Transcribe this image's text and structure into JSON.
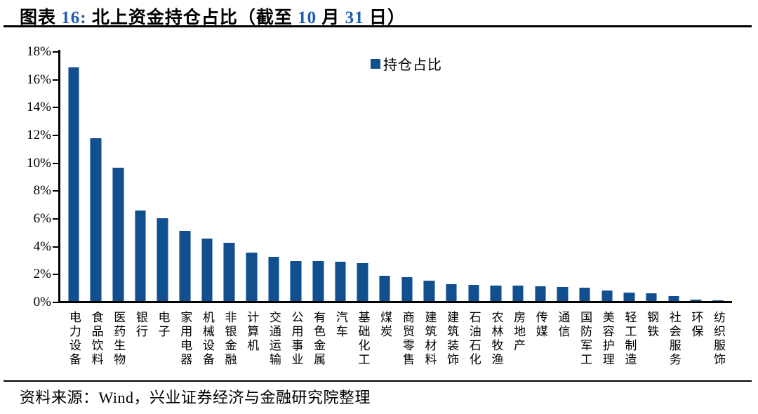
{
  "header": {
    "title_full": "图表 16: 北上资金持仓占比（截至 10 月 31 日）",
    "title_parts": [
      {
        "text": "图表 ",
        "color": "#000000"
      },
      {
        "text": "16:",
        "color": "#1f5ab0"
      },
      {
        "text": "  北上资金持仓占比（截至 ",
        "color": "#000000"
      },
      {
        "text": "10",
        "color": "#1f5ab0"
      },
      {
        "text": " 月 ",
        "color": "#000000"
      },
      {
        "text": "31",
        "color": "#1f5ab0"
      },
      {
        "text": " 日）",
        "color": "#000000"
      }
    ]
  },
  "footer": {
    "source": "资料来源：Wind，兴业证券经济与金融研究院整理"
  },
  "colors": {
    "bar": "#124f8f",
    "bar_edge": "#7da0c8",
    "axis": "#000000",
    "title_number_blue": "#1f5ab0"
  },
  "chart_data": {
    "type": "bar",
    "title": "北上资金持仓占比（截至 10 月 31 日）",
    "legend_entries": [
      "持仓占比"
    ],
    "legend_position": "top-center",
    "grid": false,
    "bar_color": "#124f8f",
    "ylim": [
      0,
      18
    ],
    "ytick_step": 2,
    "ytick_labels": [
      "0%",
      "2%",
      "4%",
      "6%",
      "8%",
      "10%",
      "12%",
      "14%",
      "16%",
      "18%"
    ],
    "ylabel": "",
    "xlabel": "",
    "categories": [
      "电力设备",
      "食品饮料",
      "医药生物",
      "银行",
      "电子",
      "家用电器",
      "机械设备",
      "非银金融",
      "计算机",
      "交通运输",
      "公用事业",
      "有色金属",
      "汽车",
      "基础化工",
      "煤炭",
      "商贸零售",
      "建筑材料",
      "建筑装饰",
      "石油石化",
      "农林牧渔",
      "房地产",
      "传媒",
      "通信",
      "国防军工",
      "美容护理",
      "轻工制造",
      "钢铁",
      "社会服务",
      "环保",
      "纺织服饰"
    ],
    "values": [
      16.9,
      11.8,
      9.7,
      6.6,
      6.05,
      5.15,
      4.6,
      4.3,
      3.6,
      3.3,
      3.0,
      3.0,
      2.9,
      2.8,
      1.9,
      1.8,
      1.55,
      1.3,
      1.25,
      1.2,
      1.2,
      1.15,
      1.1,
      1.05,
      0.85,
      0.7,
      0.65,
      0.45,
      0.2,
      0.15
    ]
  }
}
